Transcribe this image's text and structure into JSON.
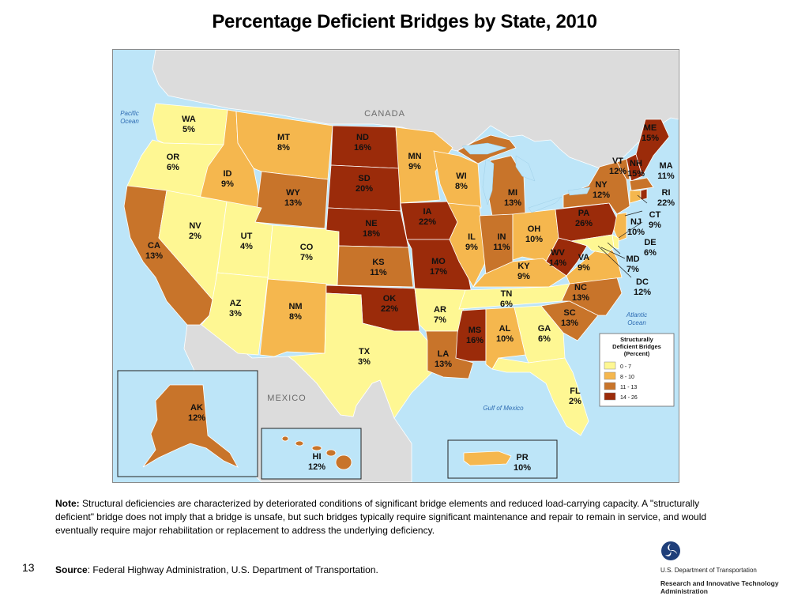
{
  "title": "Percentage Deficient Bridges by State, 2010",
  "colors": {
    "c0_7": "#FEF793",
    "c8_10": "#F5B74E",
    "c11_13": "#C8742A",
    "c14_26": "#9B2B0A",
    "water": "#BDE5F8",
    "land_other": "#DCDCDC"
  },
  "places": {
    "canada": "CANADA",
    "mexico": "MEXICO",
    "pacific": [
      "Pacific",
      "Ocean"
    ],
    "atlantic": [
      "Atlantic",
      "Ocean"
    ],
    "gulf": "Gulf of Mexico"
  },
  "legend": {
    "title": [
      "Structurally",
      "Deficient Bridges",
      "(Percent)"
    ],
    "items": [
      {
        "label": "0 - 7",
        "color": "#FEF793"
      },
      {
        "label": "8 - 10",
        "color": "#F5B74E"
      },
      {
        "label": "11 - 13",
        "color": "#C8742A"
      },
      {
        "label": "14 - 26",
        "color": "#9B2B0A"
      }
    ]
  },
  "states": [
    {
      "abbr": "WA",
      "pct": "5%"
    },
    {
      "abbr": "OR",
      "pct": "6%"
    },
    {
      "abbr": "CA",
      "pct": "13%"
    },
    {
      "abbr": "ID",
      "pct": "9%"
    },
    {
      "abbr": "NV",
      "pct": "2%"
    },
    {
      "abbr": "MT",
      "pct": "8%"
    },
    {
      "abbr": "WY",
      "pct": "13%"
    },
    {
      "abbr": "UT",
      "pct": "4%"
    },
    {
      "abbr": "AZ",
      "pct": "3%"
    },
    {
      "abbr": "CO",
      "pct": "7%"
    },
    {
      "abbr": "NM",
      "pct": "8%"
    },
    {
      "abbr": "ND",
      "pct": "16%"
    },
    {
      "abbr": "SD",
      "pct": "20%"
    },
    {
      "abbr": "NE",
      "pct": "18%"
    },
    {
      "abbr": "KS",
      "pct": "11%"
    },
    {
      "abbr": "OK",
      "pct": "22%"
    },
    {
      "abbr": "TX",
      "pct": "3%"
    },
    {
      "abbr": "MN",
      "pct": "9%"
    },
    {
      "abbr": "IA",
      "pct": "22%"
    },
    {
      "abbr": "MO",
      "pct": "17%"
    },
    {
      "abbr": "AR",
      "pct": "7%"
    },
    {
      "abbr": "LA",
      "pct": "13%"
    },
    {
      "abbr": "WI",
      "pct": "8%"
    },
    {
      "abbr": "IL",
      "pct": "9%"
    },
    {
      "abbr": "MI",
      "pct": "13%"
    },
    {
      "abbr": "IN",
      "pct": "11%"
    },
    {
      "abbr": "OH",
      "pct": "10%"
    },
    {
      "abbr": "KY",
      "pct": "9%"
    },
    {
      "abbr": "TN",
      "pct": "6%"
    },
    {
      "abbr": "MS",
      "pct": "16%"
    },
    {
      "abbr": "AL",
      "pct": "10%"
    },
    {
      "abbr": "GA",
      "pct": "6%"
    },
    {
      "abbr": "FL",
      "pct": "2%"
    },
    {
      "abbr": "SC",
      "pct": "13%"
    },
    {
      "abbr": "NC",
      "pct": "13%"
    },
    {
      "abbr": "VA",
      "pct": "9%"
    },
    {
      "abbr": "WV",
      "pct": "14%"
    },
    {
      "abbr": "PA",
      "pct": "26%"
    },
    {
      "abbr": "NY",
      "pct": "12%"
    },
    {
      "abbr": "VT",
      "pct": "12%"
    },
    {
      "abbr": "NH",
      "pct": "15%"
    },
    {
      "abbr": "ME",
      "pct": "15%"
    },
    {
      "abbr": "MA",
      "pct": "11%"
    },
    {
      "abbr": "RI",
      "pct": "22%"
    },
    {
      "abbr": "CT",
      "pct": "9%"
    },
    {
      "abbr": "NJ",
      "pct": "10%"
    },
    {
      "abbr": "DE",
      "pct": "6%"
    },
    {
      "abbr": "MD",
      "pct": "7%"
    },
    {
      "abbr": "DC",
      "pct": "12%"
    },
    {
      "abbr": "AK",
      "pct": "12%"
    },
    {
      "abbr": "HI",
      "pct": "12%"
    },
    {
      "abbr": "PR",
      "pct": "10%"
    }
  ],
  "note": {
    "label": "Note:",
    "text": " Structural deficiencies are characterized by deteriorated conditions of significant bridge elements  and reduced load-carrying capacity. A \"structurally deficient\" bridge does not imply that a bridge is unsafe, but such bridges typically require significant maintenance and repair  to remain in service, and would eventually require major rehabilitation or replacement to address the underlying deficiency."
  },
  "source": {
    "label": "Source",
    "text": ": Federal Highway Administration, U.S. Department of Transportation."
  },
  "page_number": "13",
  "dot": {
    "line1": "U.S. Department of Transportation",
    "line2": "Research and Innovative Technology",
    "line3": "Administration",
    "logo_icon": "dot-triskelion-icon"
  }
}
